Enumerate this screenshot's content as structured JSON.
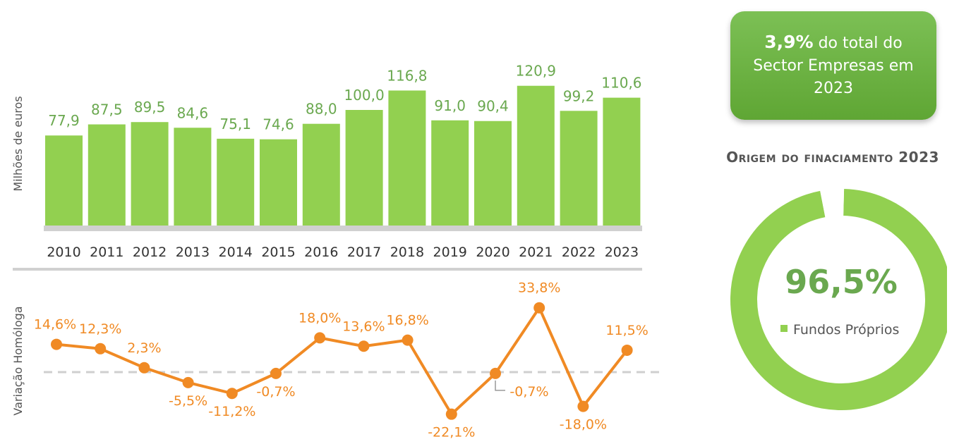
{
  "chart_data": [
    {
      "type": "bar",
      "ylabel": "Milhões de euros",
      "categories": [
        "2010",
        "2011",
        "2012",
        "2013",
        "2014",
        "2015",
        "2016",
        "2017",
        "2018",
        "2019",
        "2020",
        "2021",
        "2022",
        "2023"
      ],
      "values": [
        77.9,
        87.5,
        89.5,
        84.6,
        75.1,
        74.6,
        88.0,
        100.0,
        116.8,
        91.0,
        90.4,
        120.9,
        99.2,
        110.6
      ],
      "value_labels": [
        "77,9",
        "87,5",
        "89,5",
        "84,6",
        "75,1",
        "74,6",
        "88,0",
        "100,0",
        "116,8",
        "91,0",
        "90,4",
        "120,9",
        "99,2",
        "110,6"
      ],
      "bar_color": "#92d050"
    },
    {
      "type": "line",
      "ylabel": "Variação Homóloga",
      "x": [
        "2010",
        "2011",
        "2012",
        "2013",
        "2014",
        "2015",
        "2016",
        "2017",
        "2018",
        "2019",
        "2020",
        "2021",
        "2022",
        "2023"
      ],
      "values": [
        14.6,
        12.3,
        2.3,
        -5.5,
        -11.2,
        -0.7,
        18.0,
        13.6,
        16.8,
        -22.1,
        -0.7,
        33.8,
        -18.0,
        11.5
      ],
      "value_labels": [
        "14,6%",
        "12,3%",
        "2,3%",
        "-5,5%",
        "-11,2%",
        "-0,7%",
        "18,0%",
        "13,6%",
        "16,8%",
        "-22,1%",
        "-0,7%",
        "33,8%",
        "-18,0%",
        "11,5%"
      ],
      "line_color": "#f08a24",
      "zero_line": "dashed"
    },
    {
      "type": "pie",
      "title": "Origem do finaciamento 2023",
      "slices": [
        {
          "name": "Fundos Próprios",
          "value": 96.5,
          "color": "#92d050"
        },
        {
          "name": "",
          "value": 3.5,
          "color": "#ffffff"
        }
      ],
      "center_label": "96,5%",
      "legend": [
        "Fundos Próprios"
      ]
    }
  ],
  "info_box": {
    "highlight": "3,9%",
    "text": "do total do Sector  Empresas em 2023"
  },
  "donut": {
    "title": "Origem do finaciamento 2023",
    "center_label": "96,5%",
    "legend_label": "Fundos Próprios"
  },
  "axis_titles": {
    "bar": "Milhões de euros",
    "line": "Variação Homóloga"
  }
}
